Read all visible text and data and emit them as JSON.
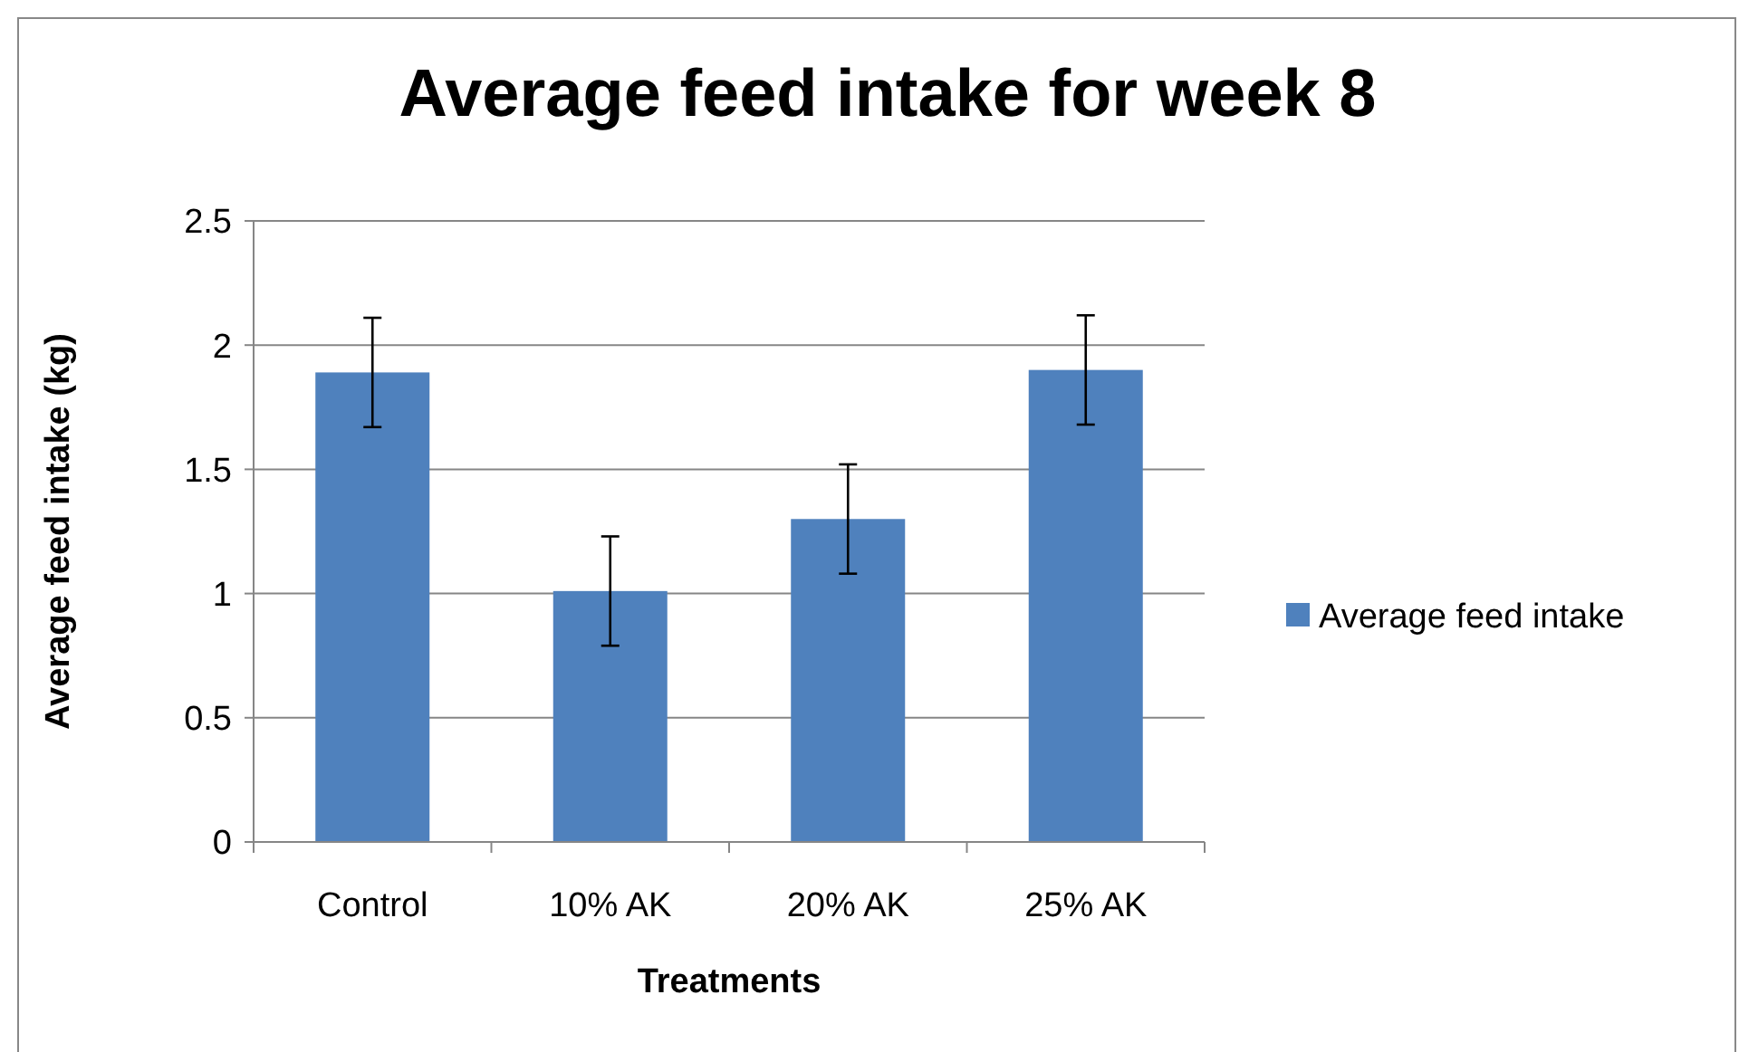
{
  "chart_data": {
    "type": "bar",
    "title": "Average feed intake for week 8",
    "xlabel": "Treatments",
    "ylabel": "Average feed intake (kg)",
    "categories": [
      "Control",
      "10% AK",
      "20% AK",
      "25% AK"
    ],
    "series": [
      {
        "name": "Average feed intake",
        "color": "#4f81bd",
        "values": [
          1.89,
          1.01,
          1.3,
          1.9
        ],
        "errors": [
          0.22,
          0.22,
          0.22,
          0.22
        ]
      }
    ],
    "ylim": [
      0,
      2.5
    ],
    "yticks": [
      0,
      0.5,
      1,
      1.5,
      2,
      2.5
    ],
    "grid": "y",
    "legend": "right"
  }
}
